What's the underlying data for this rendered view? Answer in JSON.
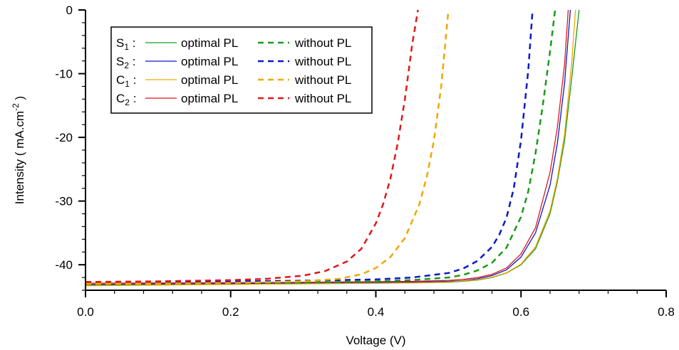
{
  "chart_data": {
    "type": "line",
    "title": "",
    "xlabel": "Voltage (V)",
    "ylabel": "Intensity ( mA.cm",
    "ylabel_sup": "-2",
    "ylabel_tail": " )",
    "xlim": [
      0.0,
      0.8
    ],
    "ylim": [
      -44,
      0
    ],
    "x_ticks": [
      0.0,
      0.2,
      0.4,
      0.6,
      0.8
    ],
    "x_tick_labels": [
      "0.0",
      "0.2",
      "0.4",
      "0.6",
      "0.8"
    ],
    "y_ticks": [
      0,
      -10,
      -20,
      -30,
      -40
    ],
    "y_tick_labels": [
      "0",
      "-10",
      "-20",
      "-30",
      "-40"
    ],
    "grid": false,
    "legend": {
      "placement": "top-left",
      "rows": [
        {
          "sample": "S",
          "sub": "1",
          "solid_label": "optimal PL",
          "dashed_label": "without PL",
          "color": "#1a9a1a"
        },
        {
          "sample": "S",
          "sub": "2",
          "solid_label": "optimal PL",
          "dashed_label": "without PL",
          "color": "#0a1ac8"
        },
        {
          "sample": "C",
          "sub": "1",
          "solid_label": "optimal PL",
          "dashed_label": "without PL",
          "color": "#f0a800"
        },
        {
          "sample": "C",
          "sub": "2",
          "solid_label": "optimal PL",
          "dashed_label": "without PL",
          "color": "#e01818"
        }
      ]
    },
    "series": [
      {
        "name": "S1 optimal PL",
        "color": "#1a9a1a",
        "style": "solid",
        "x": [
          0.0,
          0.1,
          0.2,
          0.3,
          0.4,
          0.45,
          0.5,
          0.52,
          0.54,
          0.56,
          0.58,
          0.6,
          0.62,
          0.64,
          0.65,
          0.66,
          0.67,
          0.68
        ],
        "y": [
          -43.2,
          -43.1,
          -43.05,
          -43.0,
          -42.9,
          -42.85,
          -42.75,
          -42.6,
          -42.4,
          -42.0,
          -41.3,
          -40.0,
          -37.5,
          -32.0,
          -27.0,
          -20.5,
          -10.5,
          0.0
        ]
      },
      {
        "name": "S2 optimal PL",
        "color": "#0a1ac8",
        "style": "solid",
        "x": [
          0.0,
          0.1,
          0.2,
          0.3,
          0.4,
          0.45,
          0.5,
          0.52,
          0.54,
          0.56,
          0.58,
          0.6,
          0.62,
          0.64,
          0.65,
          0.66,
          0.668
        ],
        "y": [
          -43.1,
          -43.0,
          -42.95,
          -42.9,
          -42.8,
          -42.7,
          -42.6,
          -42.5,
          -42.2,
          -41.7,
          -40.8,
          -38.8,
          -35.0,
          -27.5,
          -21.0,
          -11.5,
          0.0
        ]
      },
      {
        "name": "C1 optimal PL",
        "color": "#f0a800",
        "style": "solid",
        "x": [
          0.0,
          0.1,
          0.2,
          0.3,
          0.4,
          0.45,
          0.5,
          0.52,
          0.54,
          0.56,
          0.58,
          0.6,
          0.62,
          0.64,
          0.65,
          0.66,
          0.67,
          0.675
        ],
        "y": [
          -43.3,
          -43.2,
          -43.1,
          -43.0,
          -42.9,
          -42.85,
          -42.7,
          -42.55,
          -42.35,
          -41.95,
          -41.25,
          -39.9,
          -37.2,
          -31.5,
          -26.5,
          -19.5,
          -8.0,
          0.0
        ]
      },
      {
        "name": "C2 optimal PL",
        "color": "#e01818",
        "style": "solid",
        "x": [
          0.0,
          0.1,
          0.2,
          0.3,
          0.4,
          0.45,
          0.5,
          0.52,
          0.54,
          0.56,
          0.58,
          0.6,
          0.62,
          0.64,
          0.65,
          0.66,
          0.665
        ],
        "y": [
          -42.9,
          -42.85,
          -42.8,
          -42.75,
          -42.65,
          -42.6,
          -42.45,
          -42.3,
          -42.0,
          -41.5,
          -40.5,
          -38.3,
          -34.2,
          -25.5,
          -18.5,
          -8.5,
          0.0
        ]
      },
      {
        "name": "S1 without PL",
        "color": "#1a9a1a",
        "style": "dashed",
        "x": [
          0.0,
          0.1,
          0.2,
          0.3,
          0.4,
          0.45,
          0.5,
          0.52,
          0.54,
          0.56,
          0.58,
          0.6,
          0.61,
          0.62,
          0.63,
          0.64,
          0.647
        ],
        "y": [
          -43.0,
          -42.95,
          -42.9,
          -42.8,
          -42.6,
          -42.4,
          -42.0,
          -41.6,
          -40.9,
          -39.7,
          -37.3,
          -32.5,
          -28.5,
          -22.5,
          -15.0,
          -6.5,
          0.0
        ]
      },
      {
        "name": "S2 without PL",
        "color": "#0a1ac8",
        "style": "dashed",
        "x": [
          0.0,
          0.1,
          0.2,
          0.3,
          0.4,
          0.45,
          0.5,
          0.52,
          0.54,
          0.56,
          0.57,
          0.58,
          0.59,
          0.6,
          0.61,
          0.616
        ],
        "y": [
          -42.7,
          -42.65,
          -42.6,
          -42.5,
          -42.3,
          -42.0,
          -41.3,
          -40.6,
          -39.4,
          -37.2,
          -35.3,
          -32.6,
          -28.0,
          -20.5,
          -9.5,
          0.0
        ]
      },
      {
        "name": "C1 without PL",
        "color": "#f0a800",
        "style": "dashed",
        "x": [
          0.0,
          0.1,
          0.2,
          0.3,
          0.35,
          0.38,
          0.4,
          0.42,
          0.44,
          0.46,
          0.47,
          0.48,
          0.49,
          0.5
        ],
        "y": [
          -43.0,
          -42.95,
          -42.85,
          -42.6,
          -42.2,
          -41.5,
          -40.5,
          -38.8,
          -35.8,
          -30.5,
          -26.3,
          -20.5,
          -12.0,
          0.0
        ]
      },
      {
        "name": "C2 without PL",
        "color": "#e01818",
        "style": "dashed",
        "x": [
          0.0,
          0.1,
          0.2,
          0.25,
          0.3,
          0.33,
          0.36,
          0.38,
          0.4,
          0.41,
          0.42,
          0.43,
          0.44,
          0.45,
          0.458
        ],
        "y": [
          -42.7,
          -42.6,
          -42.4,
          -42.2,
          -41.7,
          -41.0,
          -39.5,
          -37.5,
          -33.5,
          -30.5,
          -26.5,
          -21.0,
          -14.0,
          -5.5,
          0.0
        ]
      }
    ]
  }
}
